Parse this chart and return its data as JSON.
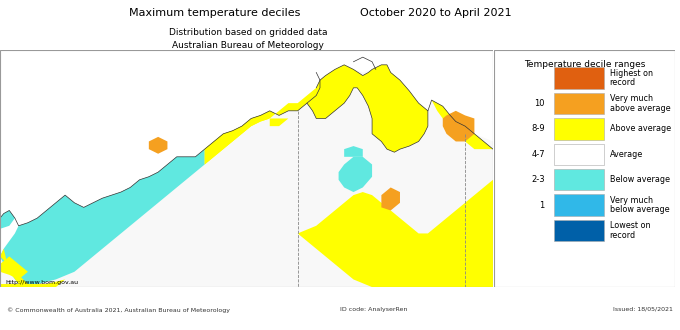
{
  "title_left": "Maximum temperature deciles",
  "title_right": "October 2020 to April 2021",
  "subtitle1": "Distribution based on gridded data",
  "subtitle2": "Australian Bureau of Meteorology",
  "legend_title": "Temperature decile ranges",
  "legend_items": [
    {
      "label": "Highest on\nrecord",
      "color": "#E06010",
      "decile": ""
    },
    {
      "label": "Very much\nabove average",
      "color": "#F5A020",
      "decile": "10"
    },
    {
      "label": "Above average",
      "color": "#FFFF00",
      "decile": "8-9"
    },
    {
      "label": "Average",
      "color": "#FFFFFF",
      "decile": "4-7"
    },
    {
      "label": "Below average",
      "color": "#60E8E0",
      "decile": "2-3"
    },
    {
      "label": "Very much\nbelow average",
      "color": "#30B8E8",
      "decile": "1"
    },
    {
      "label": "Lowest on\nrecord",
      "color": "#0060A8",
      "decile": ""
    }
  ],
  "footer_url": "http://www.bom.gov.au",
  "footer_center": "© Commonwealth of Australia 2021, Australian Bureau of Meteorology",
  "footer_id": "ID code: AnalyserRen",
  "footer_right": "Issued: 18/05/2021",
  "lon_min": 113.0,
  "lon_max": 139.5,
  "lat_min": -26.0,
  "lat_max": -10.5
}
